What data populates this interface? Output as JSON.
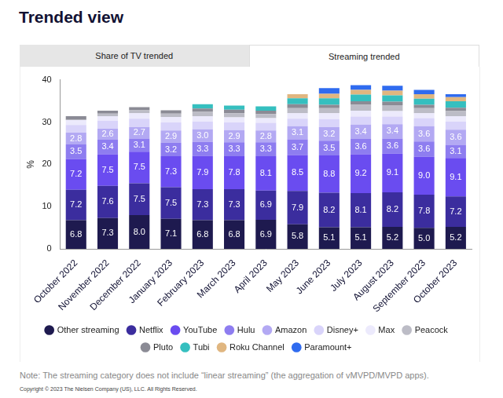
{
  "title": "Trended view",
  "tabs": [
    "Share of TV trended",
    "Streaming trended"
  ],
  "note": "Note: The streaming category does not include “linear streaming” (the aggregation of vMVPD/MVPD apps).",
  "copyright": "Copyright © 2023 The Nielsen Company (US), LLC. All Rights Reserved.",
  "chart_data": {
    "type": "bar",
    "stacked": true,
    "grid": false,
    "legend": "bottom",
    "y_label": "%",
    "ylim": [
      0,
      40
    ],
    "yticks": [
      0,
      10,
      20,
      30,
      40
    ],
    "categories": [
      "October 2022",
      "November 2022",
      "December 2022",
      "January 2023",
      "February 2023",
      "March 2023",
      "April 2023",
      "May 2023",
      "June 2023",
      "July 2023",
      "August 2023",
      "September 2023",
      "October 2023"
    ],
    "series": [
      {
        "name": "Other streaming",
        "color": "#1e1a4f",
        "data_labels": true,
        "values": [
          6.8,
          7.3,
          8.0,
          7.1,
          6.8,
          6.8,
          6.9,
          5.8,
          5.1,
          5.1,
          5.2,
          5.0,
          5.2
        ],
        "value_labels": [
          "6.8",
          "7.3",
          "8.0",
          "7.1",
          "6.8",
          "6.8",
          "6.9",
          "5.8",
          "5.1",
          "5.1",
          "5.2",
          "5.0",
          "5.2"
        ]
      },
      {
        "name": "Netflix",
        "color": "#3b2d9e",
        "data_labels": true,
        "values": [
          7.2,
          7.6,
          7.5,
          7.5,
          7.3,
          7.3,
          6.9,
          7.9,
          8.2,
          8.1,
          8.2,
          7.8,
          7.2
        ],
        "value_labels": [
          "7.2",
          "7.6",
          "7.5",
          "7.5",
          "7.3",
          "7.3",
          "6.9",
          "7.9",
          "8.2",
          "8.1",
          "8.2",
          "7.8",
          "7.2"
        ]
      },
      {
        "name": "YouTube",
        "color": "#6a4cf0",
        "data_labels": true,
        "values": [
          7.2,
          7.5,
          7.5,
          7.3,
          7.9,
          7.8,
          8.1,
          8.5,
          8.8,
          9.2,
          9.1,
          9.0,
          9.1
        ],
        "value_labels": [
          "7.2",
          "7.5",
          "7.5",
          "7.3",
          "7.9",
          "7.8",
          "8.1",
          "8.5",
          "8.8",
          "9.2",
          "9.1",
          "9.0",
          "9.1"
        ]
      },
      {
        "name": "Hulu",
        "color": "#8e7df0",
        "data_labels": true,
        "values": [
          3.5,
          3.4,
          3.1,
          3.2,
          3.3,
          3.3,
          3.3,
          3.7,
          3.5,
          3.6,
          3.6,
          3.6,
          3.1
        ],
        "value_labels": [
          "3.5",
          "3.4",
          "3.1",
          "3.2",
          "3.3",
          "3.3",
          "3.3",
          "3.7",
          "3.5",
          "3.6",
          "3.6",
          "3.6",
          "3.1"
        ]
      },
      {
        "name": "Amazon",
        "color": "#b3a9f3",
        "data_labels": true,
        "values": [
          2.8,
          2.6,
          2.7,
          2.9,
          3.0,
          2.9,
          2.8,
          3.1,
          3.2,
          3.4,
          3.4,
          3.6,
          3.6
        ],
        "value_labels": [
          "2.8",
          "2.6",
          "2.7",
          "2.9",
          "3.0",
          "2.9",
          "2.8",
          "3.1",
          "3.2",
          "3.4",
          "3.4",
          "3.6",
          "3.6"
        ]
      },
      {
        "name": "Disney+",
        "color": "#d9d4fa",
        "data_labels": false,
        "values": [
          1.8,
          1.9,
          2.0,
          1.9,
          1.8,
          1.8,
          1.8,
          1.8,
          1.9,
          1.9,
          1.8,
          1.9,
          1.9
        ]
      },
      {
        "name": "Max",
        "color": "#eceafc",
        "data_labels": false,
        "values": [
          1.2,
          1.1,
          1.3,
          1.3,
          1.3,
          1.2,
          1.1,
          1.3,
          1.4,
          1.4,
          1.3,
          1.2,
          1.3
        ]
      },
      {
        "name": "Peacock",
        "color": "#bcbcc6",
        "data_labels": false,
        "values": [
          null,
          0.6,
          0.7,
          0.8,
          1.0,
          1.0,
          1.0,
          1.2,
          1.2,
          1.4,
          1.4,
          1.2,
          1.2
        ]
      },
      {
        "name": "Pluto",
        "color": "#8b8b95",
        "data_labels": false,
        "values": [
          0.9,
          0.7,
          0.7,
          0.8,
          0.8,
          0.8,
          0.8,
          0.9,
          0.8,
          0.8,
          0.8,
          0.8,
          0.8
        ]
      },
      {
        "name": "Tubi",
        "color": "#35bfbf",
        "data_labels": false,
        "values": [
          null,
          null,
          null,
          null,
          1.0,
          1.0,
          1.0,
          1.4,
          1.5,
          1.6,
          1.5,
          1.4,
          1.5
        ]
      },
      {
        "name": "Roku Channel",
        "color": "#e0b680",
        "data_labels": false,
        "values": [
          null,
          null,
          null,
          null,
          null,
          null,
          null,
          1.0,
          1.1,
          1.1,
          1.1,
          1.1,
          1.0
        ]
      },
      {
        "name": "Paramount+",
        "color": "#2f6bef",
        "data_labels": false,
        "values": [
          null,
          null,
          null,
          null,
          null,
          null,
          null,
          null,
          1.3,
          1.1,
          1.2,
          1.0,
          0.7
        ]
      }
    ]
  }
}
